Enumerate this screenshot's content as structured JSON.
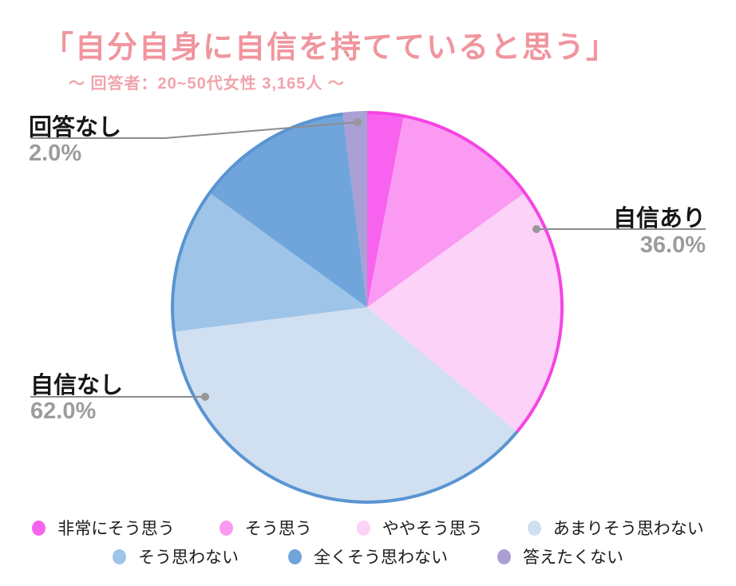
{
  "title": "「自分自身に自信を持てていると思う」",
  "subtitle": "～ 回答者：20~50代女性 3,165人 ～",
  "chart_data": {
    "type": "pie",
    "title": "「自分自身に自信を持てていると思う」",
    "subtitle": "～ 回答者：20~50代女性 3,165人 ～",
    "start_angle": "top",
    "direction": "clockwise",
    "segments": [
      {
        "label": "非常にそう思う",
        "value": 3,
        "color": "#f763ee"
      },
      {
        "label": "そう思う",
        "value": 12,
        "color": "#fa9af2"
      },
      {
        "label": "ややそう思う",
        "value": 21,
        "color": "#fcd2f8"
      },
      {
        "label": "あまりそう思わない",
        "value": 37,
        "color": "#d0e0f1"
      },
      {
        "label": "そう思わない",
        "value": 12,
        "color": "#9ec4e8"
      },
      {
        "label": "全くそう思わない",
        "value": 13,
        "color": "#70a5db"
      },
      {
        "label": "答えたくない",
        "value": 2,
        "color": "#ab9fd6"
      }
    ],
    "rim_arcs": [
      {
        "from_pct": 0,
        "to_pct": 36,
        "color": "#f544e4"
      },
      {
        "from_pct": 36,
        "to_pct": 98,
        "color": "#5a94d2"
      },
      {
        "from_pct": 98,
        "to_pct": 100,
        "color": "#ab9fd6"
      }
    ],
    "annotations": [
      {
        "label": "回答なし",
        "pct": "2.0%"
      },
      {
        "label": "自信あり",
        "pct": "36.0%"
      },
      {
        "label": "自信なし",
        "pct": "62.0%"
      }
    ]
  },
  "legend": {
    "rows": [
      [
        0,
        1,
        2,
        3
      ],
      [
        4,
        5,
        6
      ]
    ]
  },
  "colors": {
    "title_pink": "#f0959e",
    "label_black": "#161616",
    "pct_gray": "#9c9c9c",
    "leader_line": "#8c8c8c",
    "leader_dot": "#979797",
    "background": "#ffffff"
  }
}
